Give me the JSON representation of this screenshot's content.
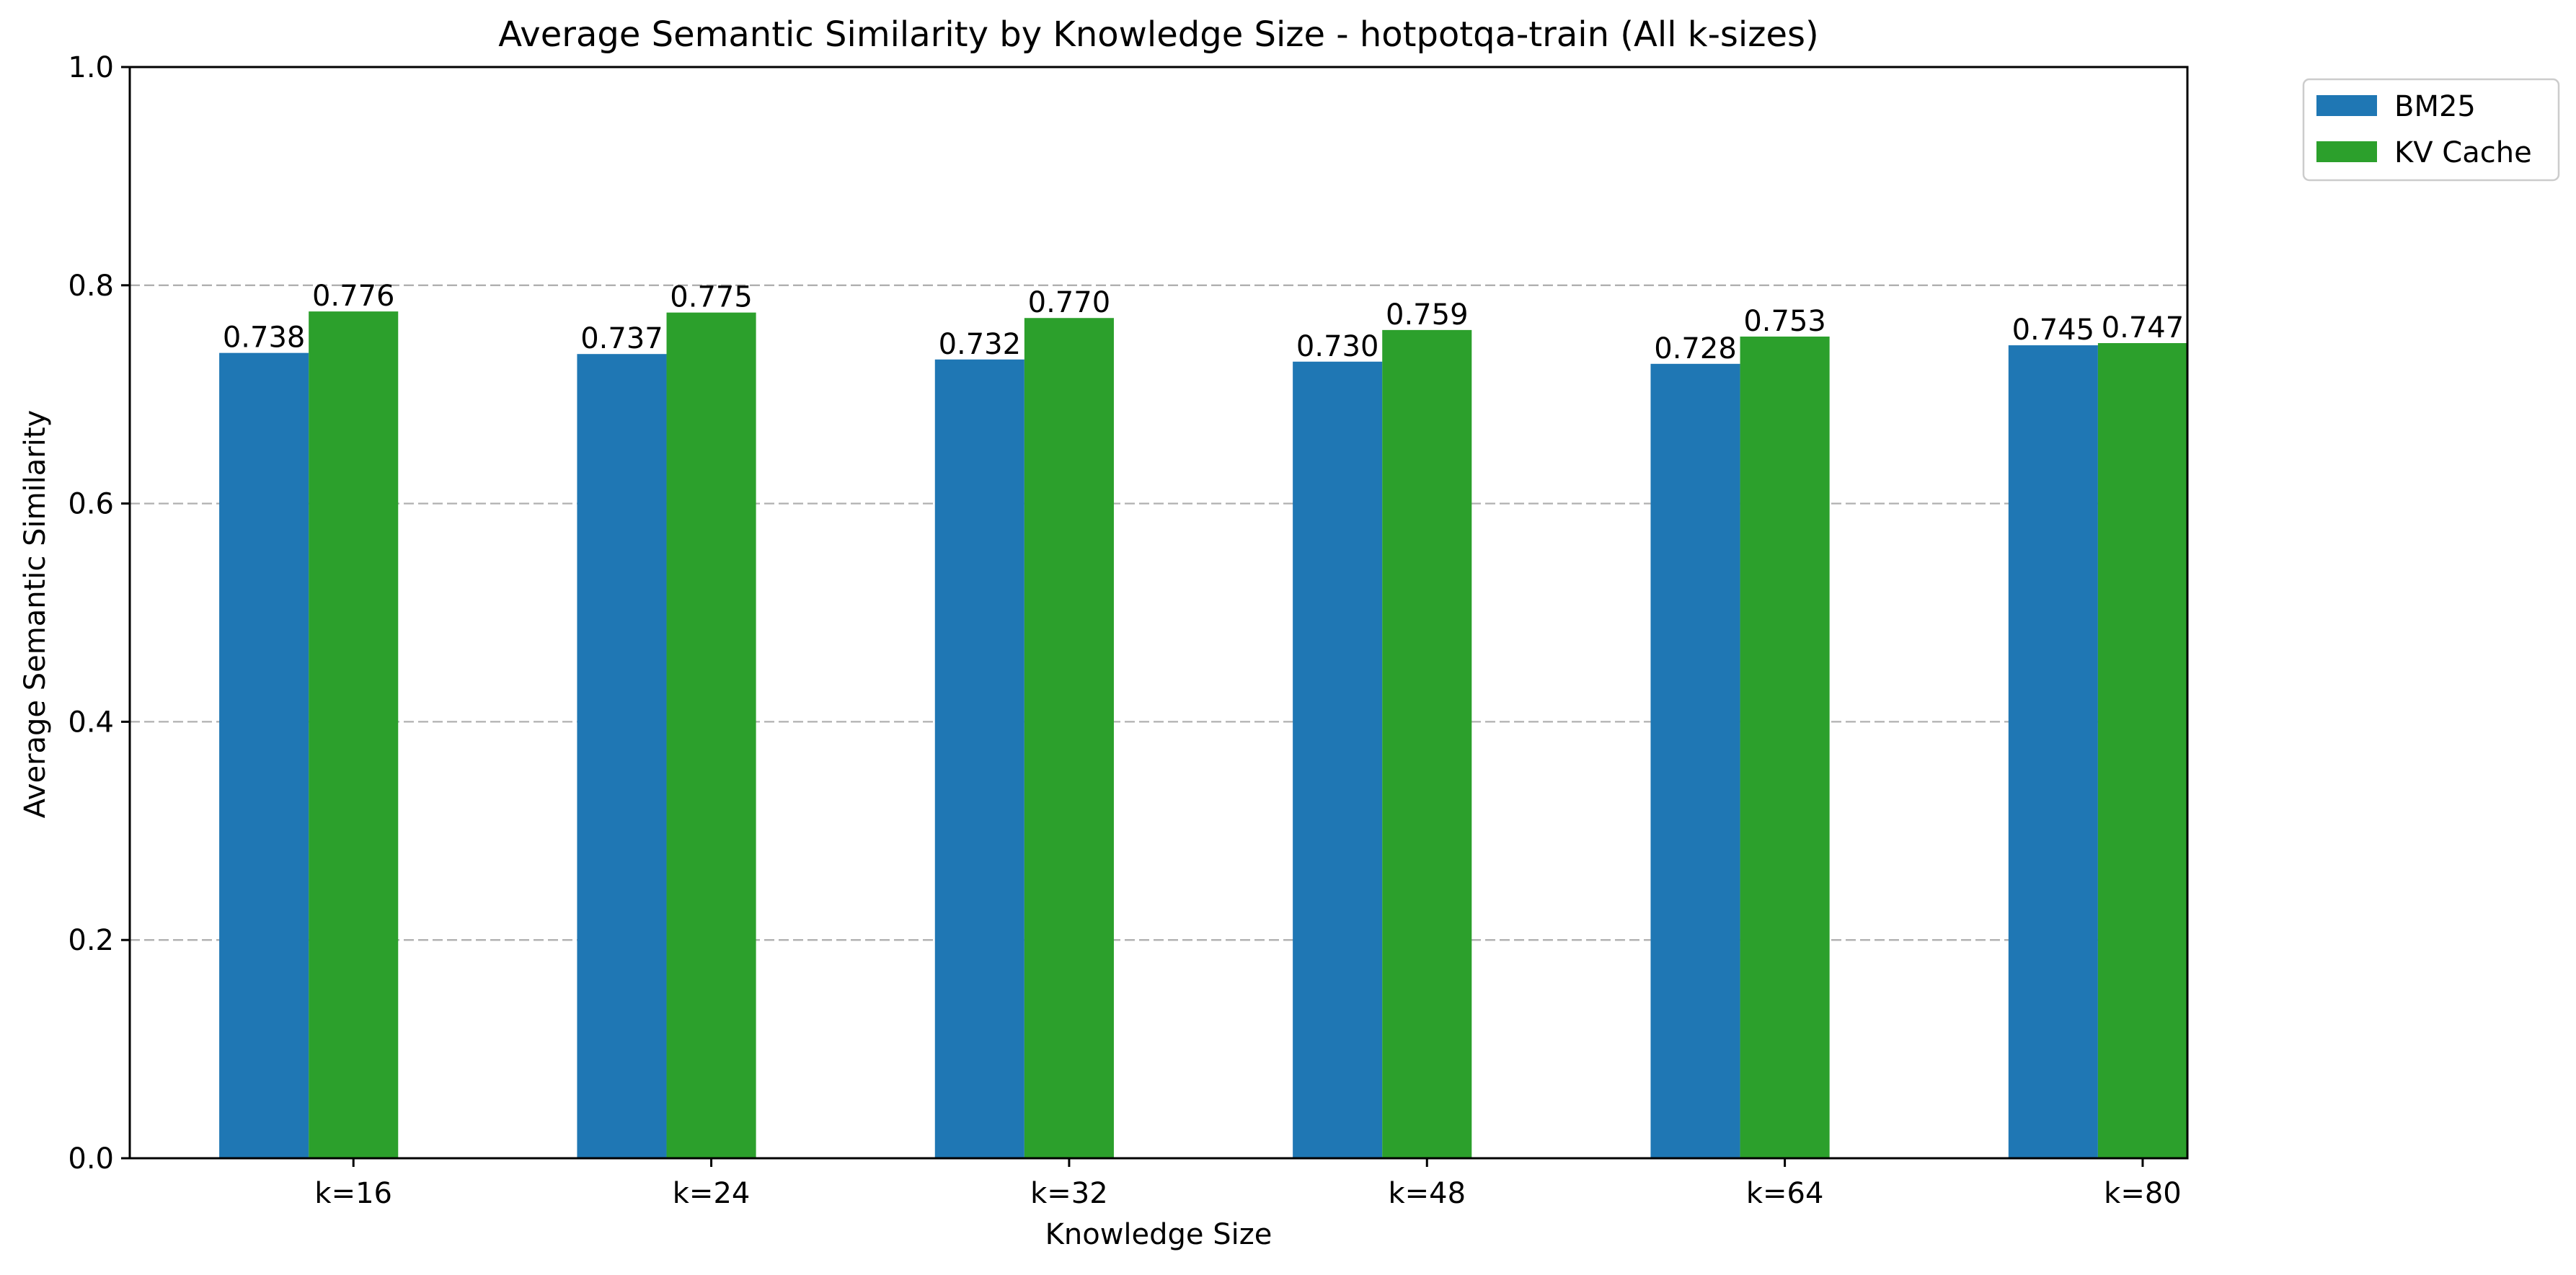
{
  "chart_data": {
    "type": "bar",
    "title": "Average Semantic Similarity by Knowledge Size - hotpotqa-train (All k-sizes)",
    "xlabel": "Knowledge Size",
    "ylabel": "Average Semantic Similarity",
    "categories": [
      "k=16",
      "k=24",
      "k=32",
      "k=48",
      "k=64",
      "k=80"
    ],
    "series": [
      {
        "name": "BM25",
        "color": "#1f77b4",
        "values": [
          0.738,
          0.737,
          0.732,
          0.73,
          0.728,
          0.745
        ],
        "labels": [
          "0.738",
          "0.737",
          "0.732",
          "0.730",
          "0.728",
          "0.745"
        ]
      },
      {
        "name": "KV Cache",
        "color": "#2ca02c",
        "values": [
          0.776,
          0.775,
          0.77,
          0.759,
          0.753,
          0.747
        ],
        "labels": [
          "0.776",
          "0.775",
          "0.770",
          "0.759",
          "0.753",
          "0.747"
        ]
      }
    ],
    "ylim": [
      0.0,
      1.0
    ],
    "yticks": [
      "0.0",
      "0.2",
      "0.4",
      "0.6",
      "0.8",
      "1.0"
    ],
    "grid": "y-dashed",
    "legend_position": "outside-top-right"
  }
}
